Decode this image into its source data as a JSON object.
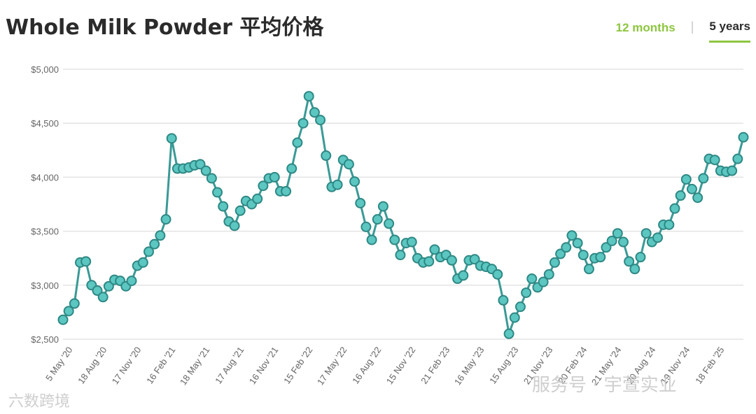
{
  "header": {
    "title": "Whole Milk Powder 平均价格",
    "tab_12_months": "12 months",
    "tab_separator": "|",
    "tab_5_years": "5 years"
  },
  "colors": {
    "line": "#3a9a96",
    "marker_fill": "#5cc6c1",
    "marker_stroke": "#2e8884",
    "accent": "#8dc63f",
    "grid": "#e3e3e3"
  },
  "watermarks": {
    "left": "六数跨境",
    "right": "服务号 · 宇萱实业"
  },
  "chart_data": {
    "type": "line",
    "title": "Whole Milk Powder 平均价格",
    "xlabel": "",
    "ylabel": "",
    "ylim": [
      2500,
      5000
    ],
    "yticks": [
      2500,
      3000,
      3500,
      4000,
      4500,
      5000
    ],
    "ytick_labels": [
      "$2,500",
      "$3,000",
      "$3,500",
      "$4,000",
      "$4,500",
      "$5,000"
    ],
    "xtick_labels": [
      "5 May '20",
      "18 Aug '20",
      "17 Nov '20",
      "16 Feb '21",
      "18 May '21",
      "17 Aug '21",
      "16 Nov '21",
      "15 Feb '22",
      "17 May '22",
      "16 Aug '22",
      "15 Nov '22",
      "21 Feb '23",
      "16 May '23",
      "15 Aug '23",
      "21 Nov '23",
      "20 Feb '24",
      "21 May '24",
      "20 Aug '24",
      "19 Nov '24",
      "18 Feb '25"
    ],
    "grid": true,
    "legend": "none",
    "series": [
      {
        "values": [
          2680,
          2760,
          2830,
          3210,
          3220,
          3000,
          2950,
          2890,
          2990,
          3050,
          3040,
          2990,
          3040,
          3180,
          3210,
          3310,
          3380,
          3460,
          3610,
          4360,
          4080,
          4080,
          4090,
          4110,
          4120,
          4060,
          3990,
          3860,
          3730,
          3590,
          3550,
          3690,
          3780,
          3750,
          3800,
          3920,
          3990,
          4000,
          3870,
          3870,
          4080,
          4320,
          4500,
          4750,
          4600,
          4530,
          4200,
          3910,
          3930,
          4160,
          4120,
          3960,
          3760,
          3540,
          3420,
          3610,
          3730,
          3570,
          3420,
          3280,
          3390,
          3400,
          3250,
          3210,
          3220,
          3330,
          3260,
          3280,
          3230,
          3060,
          3090,
          3230,
          3240,
          3180,
          3170,
          3150,
          3100,
          2860,
          2550,
          2700,
          2800,
          2930,
          3060,
          2980,
          3030,
          3100,
          3210,
          3290,
          3350,
          3460,
          3390,
          3280,
          3150,
          3250,
          3260,
          3350,
          3410,
          3480,
          3400,
          3220,
          3150,
          3260,
          3480,
          3400,
          3440,
          3560,
          3560,
          3710,
          3830,
          3980,
          3890,
          3810,
          3990,
          4170,
          4160,
          4060,
          4050,
          4060,
          4170,
          4370
        ]
      }
    ]
  }
}
